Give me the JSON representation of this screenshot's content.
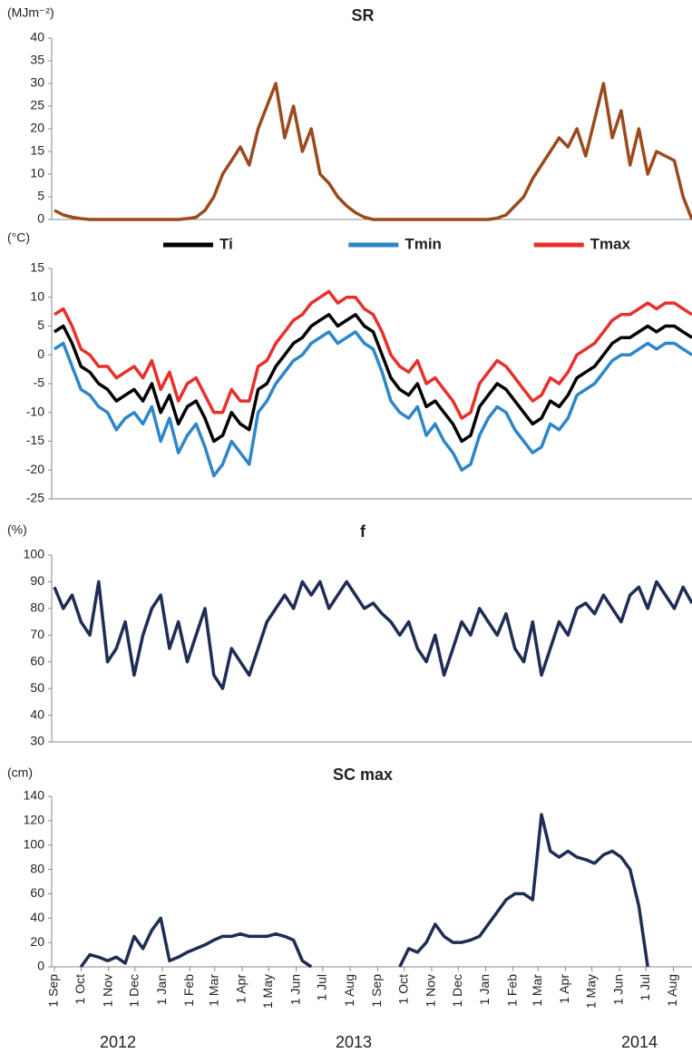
{
  "chart_data": [
    {
      "type": "line",
      "title": "SR",
      "y_label": "(MJm⁻²)",
      "x": [
        0,
        10,
        20,
        30,
        40,
        50,
        60,
        70,
        80,
        90,
        100,
        110,
        120,
        130,
        140,
        150,
        160,
        170,
        180,
        190,
        200,
        210,
        220,
        230,
        240,
        250,
        260,
        270,
        280,
        290,
        300,
        310,
        320,
        330,
        340,
        350,
        360,
        370,
        380,
        390,
        400,
        410,
        420,
        430,
        440,
        450,
        460,
        470,
        480,
        490,
        500,
        510,
        520,
        530,
        540,
        550,
        560,
        570,
        580,
        590,
        600,
        610,
        620,
        630,
        640,
        650,
        660,
        670,
        680,
        690,
        700,
        710,
        720
      ],
      "series": [
        {
          "name": "SR",
          "color": "#9a4a1c",
          "values": [
            2,
            1,
            0.5,
            0.2,
            0,
            0,
            0,
            0,
            0,
            0,
            0,
            0,
            0,
            0,
            0,
            0.2,
            0.5,
            2,
            5,
            10,
            13,
            16,
            12,
            20,
            25,
            30,
            18,
            25,
            15,
            20,
            10,
            8,
            5,
            3,
            1.5,
            0.5,
            0,
            0,
            0,
            0,
            0,
            0,
            0,
            0,
            0,
            0,
            0,
            0,
            0,
            0,
            0.3,
            1,
            3,
            5,
            9,
            12,
            15,
            18,
            16,
            20,
            14,
            22,
            30,
            18,
            24,
            12,
            20,
            10,
            15,
            14,
            13,
            5,
            0
          ]
        }
      ],
      "xlim": [
        0,
        720
      ],
      "ylim": [
        0,
        40
      ],
      "yticks": [
        0,
        5,
        10,
        15,
        20,
        25,
        30,
        35,
        40
      ]
    },
    {
      "type": "line",
      "y_label": "(°C)",
      "legend": "top",
      "x": [
        0,
        10,
        20,
        30,
        40,
        50,
        60,
        70,
        80,
        90,
        100,
        110,
        120,
        130,
        140,
        150,
        160,
        170,
        180,
        190,
        200,
        210,
        220,
        230,
        240,
        250,
        260,
        270,
        280,
        290,
        300,
        310,
        320,
        330,
        340,
        350,
        360,
        370,
        380,
        390,
        400,
        410,
        420,
        430,
        440,
        450,
        460,
        470,
        480,
        490,
        500,
        510,
        520,
        530,
        540,
        550,
        560,
        570,
        580,
        590,
        600,
        610,
        620,
        630,
        640,
        650,
        660,
        670,
        680,
        690,
        700,
        710,
        720
      ],
      "series": [
        {
          "name": "Ti",
          "color": "#000000",
          "values": [
            4,
            5,
            2,
            -2,
            -3,
            -5,
            -6,
            -8,
            -7,
            -6,
            -8,
            -5,
            -10,
            -7,
            -12,
            -9,
            -8,
            -11,
            -15,
            -14,
            -10,
            -12,
            -13,
            -6,
            -5,
            -2,
            0,
            2,
            3,
            5,
            6,
            7,
            5,
            6,
            7,
            5,
            4,
            0,
            -4,
            -6,
            -7,
            -5,
            -9,
            -8,
            -10,
            -12,
            -15,
            -14,
            -9,
            -7,
            -5,
            -6,
            -8,
            -10,
            -12,
            -11,
            -8,
            -9,
            -7,
            -4,
            -3,
            -2,
            0,
            2,
            3,
            3,
            4,
            5,
            4,
            5,
            5,
            4,
            3
          ]
        },
        {
          "name": "Tmin",
          "color": "#2e86c9",
          "values": [
            1,
            2,
            -2,
            -6,
            -7,
            -9,
            -10,
            -13,
            -11,
            -10,
            -12,
            -9,
            -15,
            -11,
            -17,
            -14,
            -12,
            -16,
            -21,
            -19,
            -15,
            -17,
            -19,
            -10,
            -8,
            -5,
            -3,
            -1,
            0,
            2,
            3,
            4,
            2,
            3,
            4,
            2,
            1,
            -3,
            -8,
            -10,
            -11,
            -9,
            -14,
            -12,
            -15,
            -17,
            -20,
            -19,
            -14,
            -11,
            -9,
            -10,
            -13,
            -15,
            -17,
            -16,
            -12,
            -13,
            -11,
            -7,
            -6,
            -5,
            -3,
            -1,
            0,
            0,
            1,
            2,
            1,
            2,
            2,
            1,
            0
          ]
        },
        {
          "name": "Tmax",
          "color": "#e8302a",
          "values": [
            7,
            8,
            5,
            1,
            0,
            -2,
            -2,
            -4,
            -3,
            -2,
            -4,
            -1,
            -6,
            -3,
            -8,
            -5,
            -4,
            -7,
            -10,
            -10,
            -6,
            -8,
            -8,
            -2,
            -1,
            2,
            4,
            6,
            7,
            9,
            10,
            11,
            9,
            10,
            10,
            8,
            7,
            4,
            0,
            -2,
            -3,
            -1,
            -5,
            -4,
            -6,
            -8,
            -11,
            -10,
            -5,
            -3,
            -1,
            -2,
            -4,
            -6,
            -8,
            -7,
            -4,
            -5,
            -3,
            0,
            1,
            2,
            4,
            6,
            7,
            7,
            8,
            9,
            8,
            9,
            9,
            8,
            7
          ]
        }
      ],
      "xlim": [
        0,
        720
      ],
      "ylim": [
        -25,
        15
      ],
      "yticks": [
        -25,
        -20,
        -15,
        -10,
        -5,
        0,
        5,
        10,
        15
      ]
    },
    {
      "type": "line",
      "title": "f",
      "y_label": "(%)",
      "x": [
        0,
        10,
        20,
        30,
        40,
        50,
        60,
        70,
        80,
        90,
        100,
        110,
        120,
        130,
        140,
        150,
        160,
        170,
        180,
        190,
        200,
        210,
        220,
        230,
        240,
        250,
        260,
        270,
        280,
        290,
        300,
        310,
        320,
        330,
        340,
        350,
        360,
        370,
        380,
        390,
        400,
        410,
        420,
        430,
        440,
        450,
        460,
        470,
        480,
        490,
        500,
        510,
        520,
        530,
        540,
        550,
        560,
        570,
        580,
        590,
        600,
        610,
        620,
        630,
        640,
        650,
        660,
        670,
        680,
        690,
        700,
        710,
        720
      ],
      "series": [
        {
          "name": "f",
          "color": "#1f2d55",
          "values": [
            88,
            80,
            85,
            75,
            70,
            90,
            60,
            65,
            75,
            55,
            70,
            80,
            85,
            65,
            75,
            60,
            70,
            80,
            55,
            50,
            65,
            60,
            55,
            65,
            75,
            80,
            85,
            80,
            90,
            85,
            90,
            80,
            85,
            90,
            85,
            80,
            82,
            78,
            75,
            70,
            75,
            65,
            60,
            70,
            55,
            65,
            75,
            70,
            80,
            75,
            70,
            78,
            65,
            60,
            75,
            55,
            65,
            75,
            70,
            80,
            82,
            78,
            85,
            80,
            75,
            85,
            88,
            80,
            90,
            85,
            80,
            88,
            82
          ]
        }
      ],
      "xlim": [
        0,
        720
      ],
      "ylim": [
        30,
        100
      ],
      "yticks": [
        30,
        40,
        50,
        60,
        70,
        80,
        90,
        100
      ]
    },
    {
      "type": "line",
      "title": "SC max",
      "y_label": "(cm)",
      "x": [
        0,
        10,
        20,
        30,
        40,
        50,
        60,
        70,
        80,
        90,
        100,
        110,
        120,
        130,
        140,
        150,
        160,
        170,
        180,
        190,
        200,
        210,
        220,
        230,
        240,
        250,
        260,
        270,
        280,
        290,
        300,
        310,
        320,
        330,
        340,
        350,
        360,
        370,
        380,
        390,
        400,
        410,
        420,
        430,
        440,
        450,
        460,
        470,
        480,
        490,
        500,
        510,
        520,
        530,
        540,
        550,
        560,
        570,
        580,
        590,
        600,
        610,
        620,
        630,
        640,
        650,
        660,
        670,
        680,
        690,
        700,
        710,
        720
      ],
      "series": [
        {
          "name": "SC max",
          "color": "#1f2d55",
          "values": [
            null,
            null,
            null,
            0,
            10,
            8,
            5,
            8,
            3,
            25,
            15,
            30,
            40,
            5,
            8,
            12,
            15,
            18,
            22,
            25,
            25,
            27,
            25,
            25,
            25,
            27,
            25,
            22,
            5,
            0,
            null,
            null,
            null,
            null,
            null,
            null,
            null,
            null,
            null,
            0,
            15,
            12,
            20,
            35,
            25,
            20,
            20,
            22,
            25,
            35,
            45,
            55,
            60,
            60,
            55,
            125,
            95,
            90,
            95,
            90,
            88,
            85,
            92,
            95,
            90,
            80,
            50,
            0,
            null,
            null,
            null,
            null,
            null
          ]
        }
      ],
      "xlim": [
        0,
        720
      ],
      "ylim": [
        0,
        140
      ],
      "yticks": [
        0,
        20,
        40,
        60,
        80,
        100,
        120,
        140
      ],
      "xticks": [
        {
          "value": 0,
          "label": "1 Sep"
        },
        {
          "value": 30,
          "label": "1 Oct"
        },
        {
          "value": 61,
          "label": "1 Nov"
        },
        {
          "value": 91,
          "label": "1 Dec"
        },
        {
          "value": 122,
          "label": "1 Jan"
        },
        {
          "value": 153,
          "label": "1 Feb"
        },
        {
          "value": 181,
          "label": "1 Mar"
        },
        {
          "value": 212,
          "label": "1 Apr"
        },
        {
          "value": 242,
          "label": "1 May"
        },
        {
          "value": 273,
          "label": "1 Jun"
        },
        {
          "value": 303,
          "label": "1 Jul"
        },
        {
          "value": 334,
          "label": "1 Aug"
        },
        {
          "value": 365,
          "label": "1 Sep"
        },
        {
          "value": 395,
          "label": "1 Oct"
        },
        {
          "value": 426,
          "label": "1 Nov"
        },
        {
          "value": 456,
          "label": "1 Dec"
        },
        {
          "value": 487,
          "label": "1 Jan"
        },
        {
          "value": 518,
          "label": "1 Feb"
        },
        {
          "value": 546,
          "label": "1 Mar"
        },
        {
          "value": 577,
          "label": "1 Apr"
        },
        {
          "value": 607,
          "label": "1 May"
        },
        {
          "value": 638,
          "label": "1 Jun"
        },
        {
          "value": 668,
          "label": "1 Jul"
        },
        {
          "value": 699,
          "label": "1 Aug"
        }
      ],
      "year_labels": [
        "2012",
        "2013",
        "2014"
      ]
    }
  ]
}
